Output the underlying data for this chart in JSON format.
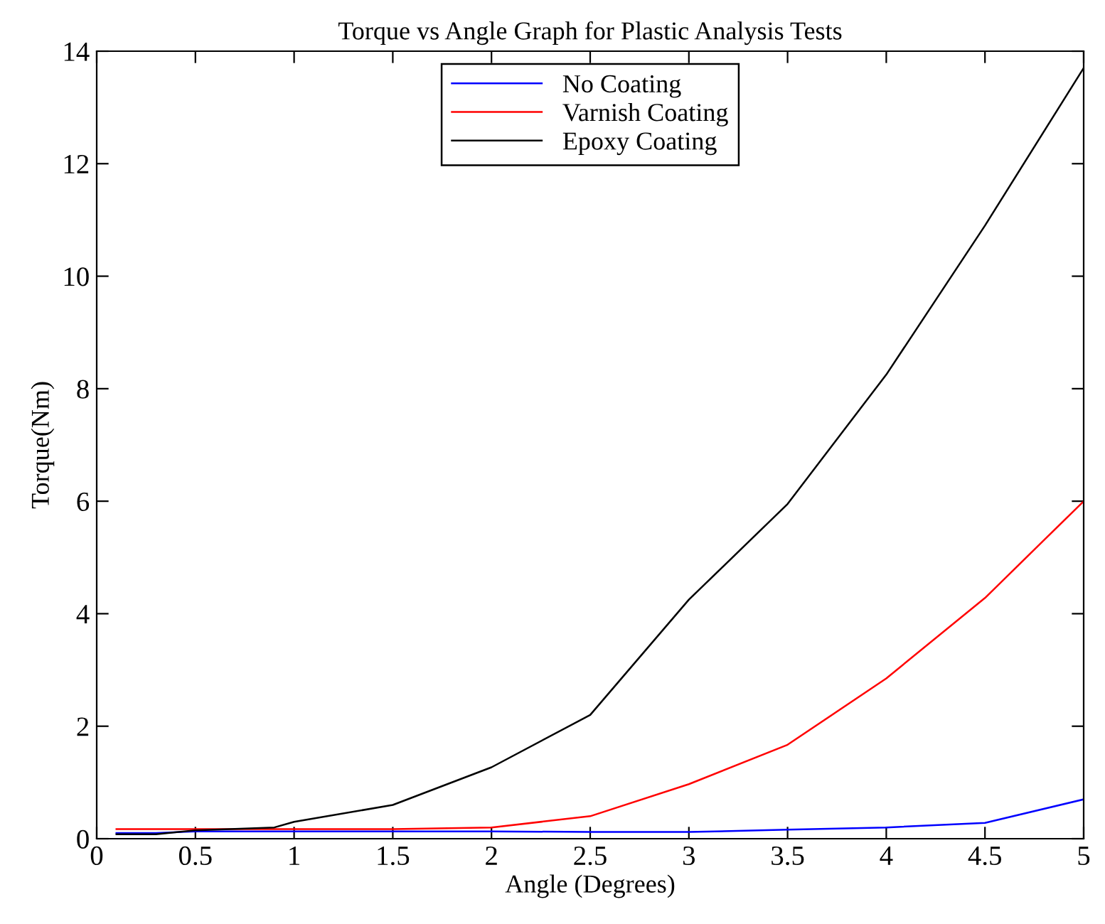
{
  "chart_data": {
    "type": "line",
    "title": "Torque vs Angle Graph for Plastic Analysis Tests",
    "xlabel": "Angle (Degrees)",
    "ylabel": "Torque(Nm)",
    "xlim": [
      0,
      5
    ],
    "ylim": [
      0,
      14
    ],
    "xticks": [
      0,
      0.5,
      1,
      1.5,
      2,
      2.5,
      3,
      3.5,
      4,
      4.5,
      5
    ],
    "yticks": [
      0,
      2,
      4,
      6,
      8,
      10,
      12,
      14
    ],
    "grid": false,
    "legend": "top",
    "marker": "none",
    "line_style": "solid",
    "series": [
      {
        "name": "No Coating",
        "color": "#0000ff",
        "x": [
          0.1,
          0.3,
          0.5,
          1,
          1.5,
          2,
          2.5,
          3,
          3.5,
          4,
          4.5,
          5
        ],
        "values": [
          0.1,
          0.1,
          0.13,
          0.13,
          0.13,
          0.13,
          0.12,
          0.12,
          0.16,
          0.2,
          0.28,
          0.7
        ]
      },
      {
        "name": "Varnish Coating",
        "color": "#ff0000",
        "x": [
          0.1,
          0.5,
          1,
          1.5,
          2,
          2.5,
          3,
          3.5,
          4,
          4.5,
          5
        ],
        "values": [
          0.17,
          0.17,
          0.17,
          0.17,
          0.2,
          0.4,
          0.97,
          1.67,
          2.85,
          4.28,
          6.0
        ]
      },
      {
        "name": "Epoxy Coating",
        "color": "#000000",
        "x": [
          0.1,
          0.3,
          0.5,
          0.9,
          1,
          1.5,
          2,
          2.5,
          3,
          3.5,
          4,
          4.5,
          5
        ],
        "values": [
          0.08,
          0.08,
          0.15,
          0.2,
          0.3,
          0.6,
          1.27,
          2.2,
          4.25,
          5.95,
          8.25,
          10.9,
          13.7
        ]
      }
    ]
  }
}
